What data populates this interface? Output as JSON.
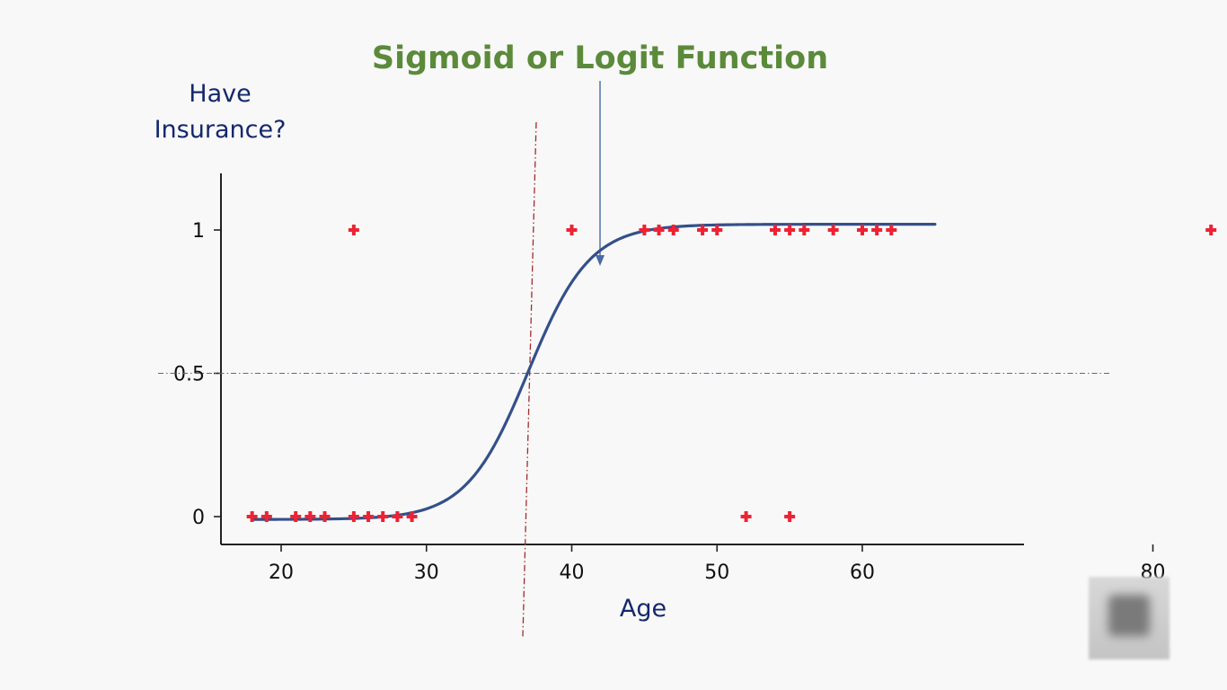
{
  "chart_data": {
    "type": "scatter",
    "annotation": "Sigmoid or Logit Function",
    "ylabel_line1": "Have",
    "ylabel_line2": "Insurance?",
    "xlabel": "Age",
    "x_ticks": [
      20,
      30,
      40,
      50,
      60,
      80
    ],
    "y_ticks": [
      0,
      0.5,
      1
    ],
    "y_tick_labels": [
      "0",
      "0.5",
      "1"
    ],
    "xlim": [
      16,
      82
    ],
    "ylim": [
      -0.1,
      1.2
    ],
    "threshold_y": 0.5,
    "threshold_x": 37,
    "points": [
      {
        "x": 18,
        "y": 0
      },
      {
        "x": 19,
        "y": 0
      },
      {
        "x": 21,
        "y": 0
      },
      {
        "x": 22,
        "y": 0
      },
      {
        "x": 23,
        "y": 0
      },
      {
        "x": 25,
        "y": 0
      },
      {
        "x": 26,
        "y": 0
      },
      {
        "x": 27,
        "y": 0
      },
      {
        "x": 28,
        "y": 0
      },
      {
        "x": 29,
        "y": 0
      },
      {
        "x": 52,
        "y": 0
      },
      {
        "x": 55,
        "y": 0
      },
      {
        "x": 25,
        "y": 1
      },
      {
        "x": 40,
        "y": 1
      },
      {
        "x": 45,
        "y": 1
      },
      {
        "x": 46,
        "y": 1
      },
      {
        "x": 47,
        "y": 1
      },
      {
        "x": 49,
        "y": 1
      },
      {
        "x": 50,
        "y": 1
      },
      {
        "x": 54,
        "y": 1
      },
      {
        "x": 55,
        "y": 1
      },
      {
        "x": 56,
        "y": 1
      },
      {
        "x": 58,
        "y": 1
      },
      {
        "x": 60,
        "y": 1
      },
      {
        "x": 61,
        "y": 1
      },
      {
        "x": 62,
        "y": 1
      },
      {
        "x": 84,
        "y": 1
      }
    ],
    "curve": {
      "type": "sigmoid",
      "x0": 37,
      "k": 0.47,
      "x_start": 18,
      "x_end": 65,
      "min": -0.01,
      "max": 1.02
    },
    "colors": {
      "curve": "#34508a",
      "points": "#ee2233",
      "vline": "#a52a2a",
      "hline": "#4a6aa5",
      "title": "#5b8a3a",
      "labels": "#14286b"
    }
  }
}
